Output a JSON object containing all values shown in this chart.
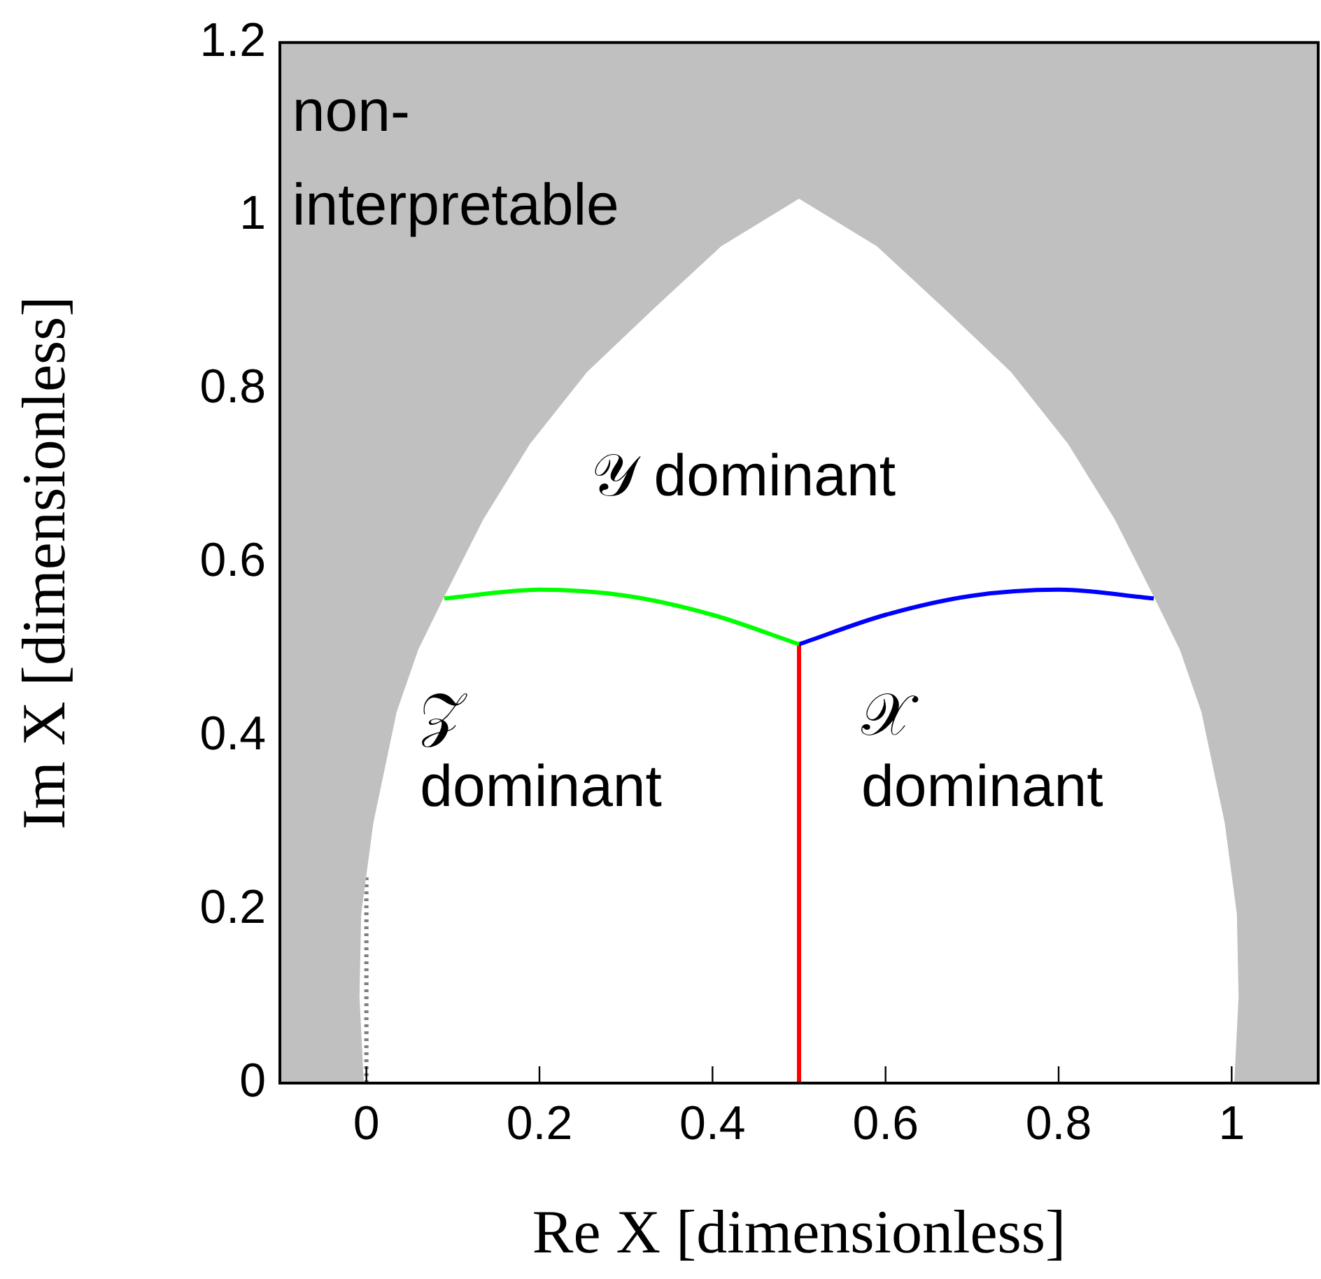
{
  "chart_data": {
    "type": "line",
    "xlabel": "Re X [dimensionless]",
    "ylabel": "Im X [dimensionless]",
    "series": [
      {
        "type": "area",
        "color": "#c0c0c0",
        "x": [
          -0.1,
          -0.1,
          -0.003,
          -0.008,
          -0.006,
          0.008,
          0.035,
          0.06,
          0.089,
          0.135,
          0.189,
          0.255,
          0.332,
          0.41,
          0.5,
          0.59,
          0.668,
          0.745,
          0.811,
          0.865,
          0.911,
          0.94,
          0.965,
          0.992,
          1.006,
          1.008,
          1.003,
          1.1,
          1.1
        ],
        "values": [
          1.2,
          0,
          0,
          0.1,
          0.195,
          0.3,
          0.428,
          0.5,
          0.559,
          0.65,
          0.737,
          0.82,
          0.893,
          0.965,
          1.02,
          0.965,
          0.893,
          0.82,
          0.737,
          0.65,
          0.559,
          0.5,
          0.428,
          0.3,
          0.195,
          0.1,
          0,
          0,
          1.2
        ]
      },
      {
        "color": "#00ff00",
        "x": [
          0.09,
          0.2,
          0.3,
          0.4,
          0.5
        ],
        "values": [
          0.559,
          0.569,
          0.562,
          0.54,
          0.506
        ]
      },
      {
        "color": "#0000ff",
        "x": [
          0.5,
          0.6,
          0.7,
          0.8,
          0.91
        ],
        "values": [
          0.506,
          0.54,
          0.562,
          0.569,
          0.559
        ]
      },
      {
        "color": "#ff0000",
        "x": [
          0.5,
          0.5
        ],
        "values": [
          0,
          0.506
        ]
      },
      {
        "color": "#808080",
        "line_style": "dotted",
        "x": [
          0,
          0
        ],
        "values": [
          0,
          0.24
        ]
      }
    ],
    "xlim": [
      -0.1,
      1.1
    ],
    "xticks": [
      0,
      0.2,
      0.4,
      0.6,
      0.8,
      1
    ],
    "ylim": [
      0,
      1.2
    ],
    "yticks": [
      0,
      0.2,
      0.4,
      0.6,
      0.8,
      1,
      1.2
    ],
    "grid": false,
    "legend": false,
    "marker": "none",
    "annotations": [
      "non-\ninterpretable",
      "𝒴 dominant",
      "𝒵\ndominant",
      "𝒳\ndominant"
    ]
  }
}
